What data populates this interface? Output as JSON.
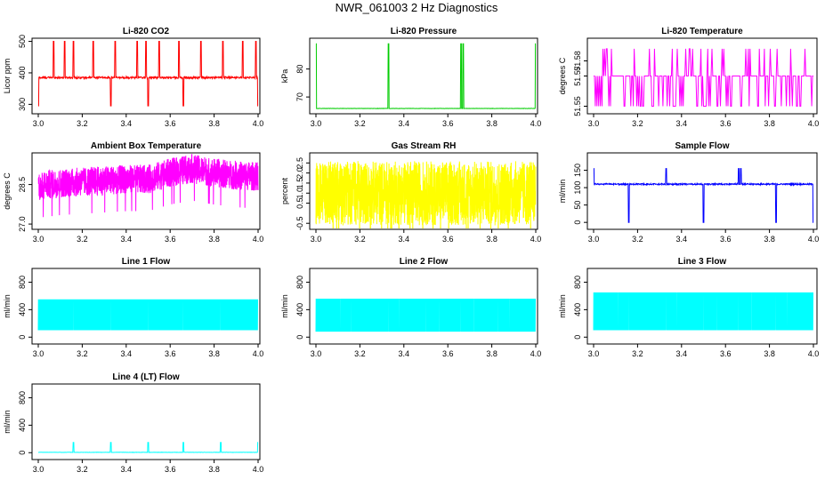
{
  "title": "NWR_061003  2 Hz Diagnostics",
  "chart_data": [
    {
      "type": "line",
      "title": "Li-820 CO2",
      "ylabel": "Licor ppm",
      "color": "#ff0000",
      "xlim": [
        3.0,
        4.0
      ],
      "ylim": [
        270,
        510
      ],
      "xticks": [
        "3.0",
        "3.2",
        "3.4",
        "3.6",
        "3.8",
        "4.0"
      ],
      "yticks": [
        "300",
        "400",
        "500"
      ],
      "ytick_values": [
        300,
        400,
        500
      ],
      "pattern": "spikes",
      "baseline": 385,
      "noise": 3,
      "spikes_up": [
        3.07,
        3.12,
        3.16,
        3.25,
        3.35,
        3.45,
        3.49,
        3.55,
        3.64,
        3.74,
        3.84,
        3.93,
        3.99
      ],
      "spike_up_to": 500,
      "spikes_down": [
        3.0,
        3.33,
        3.5,
        3.66,
        4.0
      ],
      "spike_down_to": 295
    },
    {
      "type": "line",
      "title": "Li-820 Pressure",
      "ylabel": "kPa",
      "color": "#00cc00",
      "xlim": [
        3.0,
        4.0
      ],
      "ylim": [
        64,
        91
      ],
      "xticks": [
        "3.0",
        "3.2",
        "3.4",
        "3.6",
        "3.8",
        "4.0"
      ],
      "yticks": [
        "70",
        "80"
      ],
      "ytick_values": [
        70,
        80
      ],
      "pattern": "spikes",
      "baseline": 65.9,
      "noise": 0.05,
      "spikes_up": [
        3.0,
        3.33,
        3.66,
        3.67,
        4.0
      ],
      "spike_up_to": 89,
      "spikes_down": [],
      "spike_down_to": 65
    },
    {
      "type": "line",
      "title": "Li-820 Temperature",
      "ylabel": "degrees C",
      "color": "#ff00ff",
      "xlim": [
        3.0,
        4.0
      ],
      "ylim": [
        51.545,
        51.595
      ],
      "xticks": [
        "3.0",
        "3.2",
        "3.4",
        "3.6",
        "3.8",
        "4.0"
      ],
      "yticks": [
        "51.55",
        "51.57",
        "51.58"
      ],
      "ytick_values": [
        51.55,
        51.57,
        51.58
      ],
      "pattern": "steps",
      "high": 51.588,
      "mid": 51.57,
      "low": 51.55
    },
    {
      "type": "line",
      "title": "Ambient Box Temperature",
      "ylabel": "degrees C",
      "color": "#ff00ff",
      "xlim": [
        3.0,
        4.0
      ],
      "ylim": [
        26.8,
        29.7
      ],
      "xticks": [
        "3.0",
        "3.2",
        "3.4",
        "3.6",
        "3.8",
        "4.0"
      ],
      "yticks": [
        "27.0",
        "28.5"
      ],
      "ytick_values": [
        27.0,
        28.5
      ],
      "pattern": "noisy",
      "center": [
        28.45,
        28.55,
        28.6,
        28.65,
        28.7,
        28.7,
        28.95,
        29.1,
        28.95,
        28.85,
        28.8
      ],
      "amp": 0.55
    },
    {
      "type": "line",
      "title": "Gas Stream RH",
      "ylabel": "percent",
      "color": "#ffff00",
      "xlim": [
        3.0,
        4.0
      ],
      "ylim": [
        -0.8,
        3.0
      ],
      "xticks": [
        "3.0",
        "3.2",
        "3.4",
        "3.6",
        "3.8",
        "4.0"
      ],
      "yticks": [
        "-0.5",
        "0.5",
        "1.0",
        "1.5",
        "2.0",
        "2.5"
      ],
      "ytick_values": [
        -0.5,
        0.5,
        1.0,
        1.5,
        2.0,
        2.5
      ],
      "pattern": "noisy",
      "center": [
        1.0,
        1.0,
        1.0,
        1.0,
        1.0,
        1.0,
        1.0,
        1.0,
        1.0,
        1.0,
        1.0
      ],
      "amp": 1.6
    },
    {
      "type": "line",
      "title": "Sample Flow",
      "ylabel": "ml/min",
      "color": "#0000ff",
      "xlim": [
        3.0,
        4.0
      ],
      "ylim": [
        -20,
        200
      ],
      "xticks": [
        "3.0",
        "3.2",
        "3.4",
        "3.6",
        "3.8",
        "4.0"
      ],
      "yticks": [
        "0",
        "50",
        "100",
        "150"
      ],
      "ytick_values": [
        0,
        50,
        100,
        150
      ],
      "pattern": "spikes",
      "baseline": 110,
      "noise": 2,
      "spikes_up": [
        3.0,
        3.33,
        3.66,
        3.67
      ],
      "spike_up_to": 155,
      "spikes_down": [
        3.16,
        3.33,
        3.5,
        3.66,
        3.83,
        4.0
      ],
      "spike_down_to": 0
    },
    {
      "type": "line",
      "title": "Line 1 Flow",
      "ylabel": "ml/min",
      "color": "#00ffff",
      "xlim": [
        3.0,
        4.0
      ],
      "ylim": [
        -100,
        1000
      ],
      "xticks": [
        "3.0",
        "3.2",
        "3.4",
        "3.6",
        "3.8",
        "4.0"
      ],
      "yticks": [
        "0",
        "400",
        "800"
      ],
      "ytick_values": [
        0,
        400,
        800
      ],
      "pattern": "band",
      "low": 100,
      "high": 550,
      "gaps": [
        3.16,
        3.33,
        3.5,
        3.66,
        3.83,
        4.0
      ]
    },
    {
      "type": "line",
      "title": "Line 2 Flow",
      "ylabel": "ml/min",
      "color": "#00ffff",
      "xlim": [
        3.0,
        4.0
      ],
      "ylim": [
        -100,
        1000
      ],
      "xticks": [
        "3.0",
        "3.2",
        "3.4",
        "3.6",
        "3.8",
        "4.0"
      ],
      "yticks": [
        "0",
        "400",
        "800"
      ],
      "ytick_values": [
        0,
        400,
        800
      ],
      "pattern": "band",
      "low": 80,
      "high": 560,
      "gaps": [
        3.04,
        3.11,
        3.16,
        3.24,
        3.33,
        3.38,
        3.44,
        3.5,
        3.56,
        3.66,
        3.72,
        3.77,
        3.83,
        3.88,
        3.94,
        4.0
      ]
    },
    {
      "type": "line",
      "title": "Line 3 Flow",
      "ylabel": "ml/min",
      "color": "#00ffff",
      "xlim": [
        3.0,
        4.0
      ],
      "ylim": [
        -100,
        1000
      ],
      "xticks": [
        "3.0",
        "3.2",
        "3.4",
        "3.6",
        "3.8",
        "4.0"
      ],
      "yticks": [
        "0",
        "400",
        "800"
      ],
      "ytick_values": [
        0,
        400,
        800
      ],
      "pattern": "band",
      "low": 100,
      "high": 650,
      "gaps": [
        3.04,
        3.11,
        3.16,
        3.24,
        3.33,
        3.38,
        3.44,
        3.5,
        3.56,
        3.66,
        3.72,
        3.77,
        3.83,
        3.88,
        3.94,
        4.0
      ]
    },
    {
      "type": "line",
      "title": "Line 4 (LT) Flow",
      "ylabel": "ml/min",
      "color": "#00ffff",
      "xlim": [
        3.0,
        4.0
      ],
      "ylim": [
        -100,
        1000
      ],
      "xticks": [
        "3.0",
        "3.2",
        "3.4",
        "3.6",
        "3.8",
        "4.0"
      ],
      "yticks": [
        "0",
        "400",
        "800"
      ],
      "ytick_values": [
        0,
        400,
        800
      ],
      "pattern": "spikes",
      "baseline": 5,
      "noise": 2,
      "spikes_up": [
        3.16,
        3.33,
        3.5,
        3.66,
        3.83,
        4.0
      ],
      "spike_up_to": 150,
      "spikes_down": [],
      "spike_down_to": 0
    }
  ]
}
